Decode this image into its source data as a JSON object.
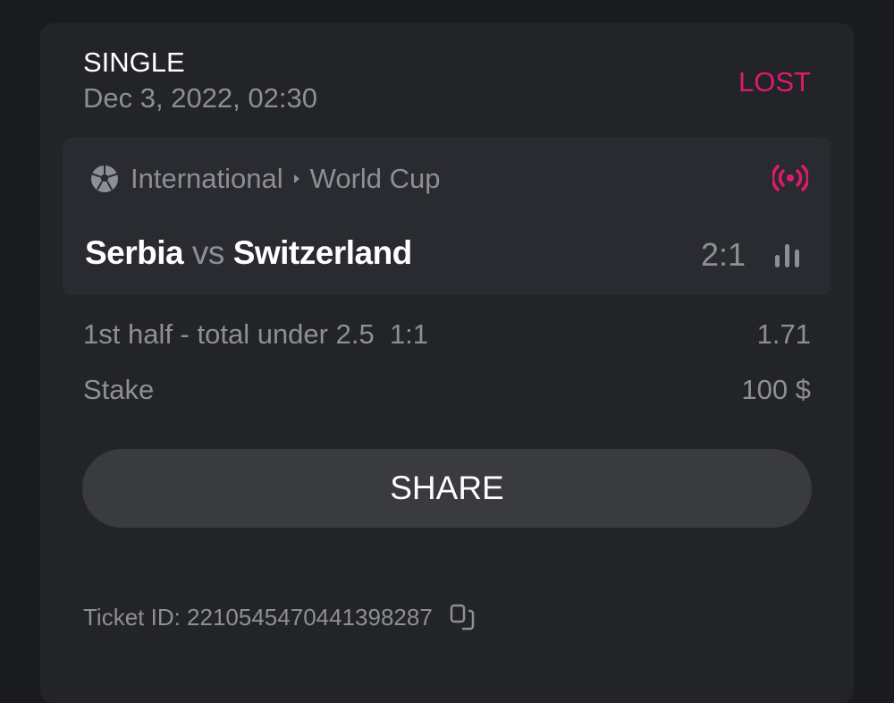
{
  "bet": {
    "type": "SINGLE",
    "date": "Dec 3, 2022, 02:30",
    "status": "LOST",
    "status_color": "#e0196f"
  },
  "event": {
    "sport_icon": "soccer-ball-icon",
    "category": "International",
    "league": "World Cup",
    "live_icon": "live-broadcast-icon",
    "home": "Serbia",
    "vs": "vs",
    "away": "Switzerland",
    "score": "2:1",
    "stats_icon": "bar-chart-icon"
  },
  "selection": {
    "market": "1st half - total under 2.5",
    "market_score": "1:1",
    "odds": "1.71"
  },
  "stake": {
    "label": "Stake",
    "value": "100 $"
  },
  "share_label": "SHARE",
  "ticket": {
    "label": "Ticket ID: 2210545470441398287",
    "copy_icon": "copy-icon"
  }
}
